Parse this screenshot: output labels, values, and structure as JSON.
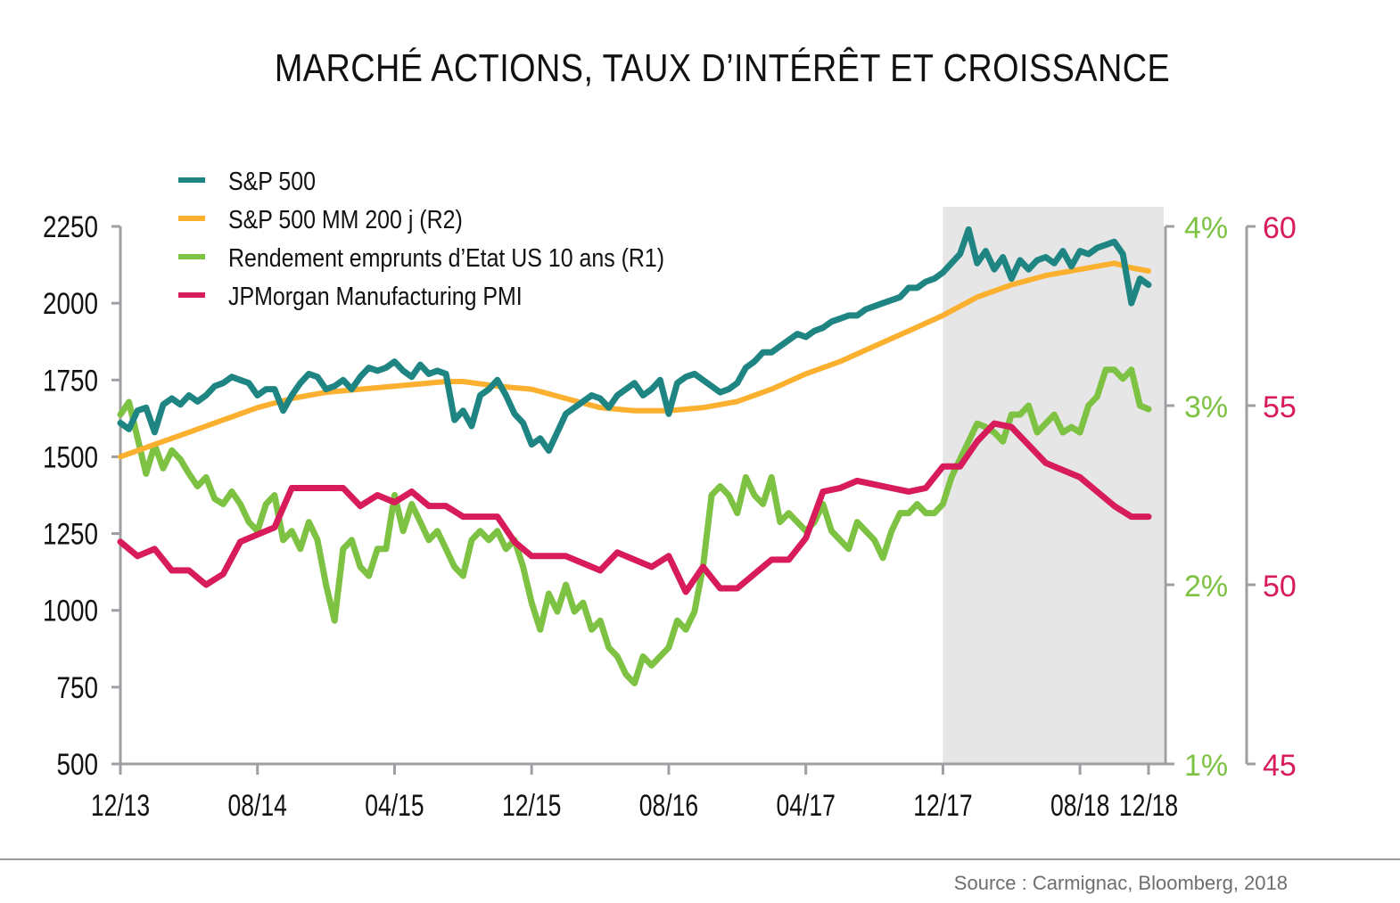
{
  "chart_data": {
    "type": "line",
    "title": "MARCHÉ ACTIONS, TAUX D’INTÉRÊT ET CROISSANCE",
    "source": "Source : Carmignac, Bloomberg, 2018",
    "x_ticks": [
      "12/13",
      "08/14",
      "04/15",
      "12/15",
      "08/16",
      "04/17",
      "12/17",
      "08/18",
      "12/18"
    ],
    "x_tick_months": [
      0,
      8,
      16,
      24,
      32,
      40,
      48,
      56,
      60
    ],
    "x_range_months": [
      0,
      61
    ],
    "shaded_region": {
      "from_month": 48,
      "to_month": 61,
      "color": "#e6e6e6"
    },
    "axes": {
      "left": {
        "ticks": [
          "2250",
          "2000",
          "1750",
          "1500",
          "1250",
          "1000",
          "750",
          "500"
        ],
        "range": [
          500,
          2250
        ],
        "color": "#111111"
      },
      "right1": {
        "ticks": [
          "4%",
          "3%",
          "2%",
          "1%"
        ],
        "range": [
          1,
          4
        ],
        "color": "#7dc242"
      },
      "right2": {
        "ticks": [
          "60",
          "55",
          "50",
          "45"
        ],
        "range": [
          45,
          60
        ],
        "color": "#d81b5a"
      }
    },
    "legend": [
      {
        "name": "S&P 500",
        "color": "#1e8583"
      },
      {
        "name": "S&P 500 MM 200 j (R2)",
        "color": "#fbb030"
      },
      {
        "name": "Rendement emprunts d’Etat US 10 ans (R1)",
        "color": "#7dc242"
      },
      {
        "name": "JPMorgan Manufacturing PMI",
        "color": "#d81b5a"
      }
    ],
    "series": [
      {
        "name": "S&P 500",
        "axis": "left",
        "color": "#1e8583",
        "x": [
          0,
          0.5,
          1,
          1.5,
          2,
          2.5,
          3,
          3.5,
          4,
          4.5,
          5,
          5.5,
          6,
          6.5,
          7,
          7.5,
          8,
          8.5,
          9,
          9.5,
          10,
          10.5,
          11,
          11.5,
          12,
          12.5,
          13,
          13.5,
          14,
          14.5,
          15,
          15.5,
          16,
          16.5,
          17,
          17.5,
          18,
          18.5,
          19,
          19.5,
          20,
          20.5,
          21,
          21.5,
          22,
          22.5,
          23,
          23.5,
          24,
          24.5,
          25,
          25.5,
          26,
          26.5,
          27,
          27.5,
          28,
          28.5,
          29,
          29.5,
          30,
          30.5,
          31,
          31.5,
          32,
          32.5,
          33,
          33.5,
          34,
          34.5,
          35,
          35.5,
          36,
          36.5,
          37,
          37.5,
          38,
          38.5,
          39,
          39.5,
          40,
          40.5,
          41,
          41.5,
          42,
          42.5,
          43,
          43.5,
          44,
          44.5,
          45,
          45.5,
          46,
          46.5,
          47,
          47.5,
          48,
          48.5,
          49,
          49.5,
          50,
          50.5,
          51,
          51.5,
          52,
          52.5,
          53,
          53.5,
          54,
          54.5,
          55,
          55.5,
          56,
          56.5,
          57,
          57.5,
          58,
          58.5,
          59,
          59.5,
          60
        ],
        "values": [
          1610,
          1590,
          1650,
          1660,
          1580,
          1670,
          1690,
          1670,
          1700,
          1680,
          1700,
          1730,
          1740,
          1760,
          1750,
          1740,
          1700,
          1720,
          1720,
          1650,
          1700,
          1740,
          1770,
          1760,
          1720,
          1730,
          1750,
          1720,
          1760,
          1790,
          1780,
          1790,
          1810,
          1780,
          1760,
          1800,
          1770,
          1780,
          1770,
          1620,
          1650,
          1600,
          1700,
          1720,
          1750,
          1700,
          1640,
          1610,
          1540,
          1560,
          1520,
          1580,
          1640,
          1660,
          1680,
          1700,
          1690,
          1660,
          1700,
          1720,
          1740,
          1700,
          1720,
          1750,
          1640,
          1740,
          1760,
          1770,
          1750,
          1730,
          1710,
          1720,
          1740,
          1790,
          1810,
          1840,
          1840,
          1860,
          1880,
          1900,
          1890,
          1910,
          1920,
          1940,
          1950,
          1960,
          1960,
          1980,
          1990,
          2000,
          2010,
          2020,
          2050,
          2050,
          2070,
          2080,
          2100,
          2130,
          2160,
          2240,
          2130,
          2170,
          2110,
          2150,
          2080,
          2140,
          2110,
          2140,
          2150,
          2130,
          2170,
          2120,
          2170,
          2160,
          2180,
          2190,
          2200,
          2160,
          2000,
          2080,
          2060
        ],
        "value_labels": []
      },
      {
        "name": "S&P 500 MM 200 j (R2)",
        "axis": "left",
        "color": "#fbb030",
        "x": [
          0,
          2,
          4,
          6,
          8,
          10,
          12,
          14,
          16,
          18,
          19,
          20,
          22,
          24,
          26,
          28,
          30,
          32,
          34,
          36,
          38,
          40,
          42,
          44,
          46,
          48,
          50,
          52,
          54,
          56,
          58,
          59,
          60
        ],
        "values": [
          1500,
          1540,
          1580,
          1620,
          1660,
          1690,
          1710,
          1720,
          1730,
          1740,
          1745,
          1745,
          1730,
          1720,
          1690,
          1660,
          1650,
          1650,
          1660,
          1680,
          1720,
          1770,
          1810,
          1860,
          1910,
          1960,
          2020,
          2060,
          2090,
          2110,
          2130,
          2115,
          2105
        ]
      },
      {
        "name": "Rendement emprunts d’Etat US 10 ans (R1)",
        "axis": "right1",
        "color": "#7dc242",
        "x": [
          0,
          0.5,
          1,
          1.5,
          2,
          2.5,
          3,
          3.5,
          4,
          4.5,
          5,
          5.5,
          6,
          6.5,
          7,
          7.5,
          8,
          8.5,
          9,
          9.5,
          10,
          10.5,
          11,
          11.5,
          12,
          12.5,
          13,
          13.5,
          14,
          14.5,
          15,
          15.5,
          16,
          16.5,
          17,
          17.5,
          18,
          18.5,
          19,
          19.5,
          20,
          20.5,
          21,
          21.5,
          22,
          22.5,
          23,
          23.5,
          24,
          24.5,
          25,
          25.5,
          26,
          26.5,
          27,
          27.5,
          28,
          28.5,
          29,
          29.5,
          30,
          30.5,
          31,
          31.5,
          32,
          32.5,
          33,
          33.5,
          34,
          34.5,
          35,
          35.5,
          36,
          36.5,
          37,
          37.5,
          38,
          38.5,
          39,
          39.5,
          40,
          40.5,
          41,
          41.5,
          42,
          42.5,
          43,
          43.5,
          44,
          44.5,
          45,
          45.5,
          46,
          46.5,
          47,
          47.5,
          48,
          48.5,
          49,
          49.5,
          50,
          50.5,
          51,
          51.5,
          52,
          52.5,
          53,
          53.5,
          54,
          54.5,
          55,
          55.5,
          56,
          56.5,
          57,
          57.5,
          58,
          58.5,
          59,
          59.5,
          60
        ],
        "values": [
          2.95,
          3.02,
          2.82,
          2.62,
          2.78,
          2.65,
          2.75,
          2.7,
          2.62,
          2.55,
          2.6,
          2.48,
          2.45,
          2.52,
          2.45,
          2.35,
          2.3,
          2.45,
          2.5,
          2.25,
          2.3,
          2.2,
          2.35,
          2.25,
          2.0,
          1.8,
          2.2,
          2.25,
          2.1,
          2.05,
          2.2,
          2.2,
          2.5,
          2.3,
          2.45,
          2.35,
          2.25,
          2.3,
          2.2,
          2.1,
          2.05,
          2.25,
          2.3,
          2.25,
          2.3,
          2.2,
          2.25,
          2.1,
          1.9,
          1.75,
          1.95,
          1.85,
          2.0,
          1.85,
          1.9,
          1.75,
          1.8,
          1.65,
          1.6,
          1.5,
          1.45,
          1.6,
          1.55,
          1.6,
          1.65,
          1.8,
          1.75,
          1.85,
          2.1,
          2.5,
          2.55,
          2.5,
          2.4,
          2.6,
          2.5,
          2.45,
          2.6,
          2.35,
          2.4,
          2.35,
          2.3,
          2.35,
          2.45,
          2.3,
          2.25,
          2.2,
          2.35,
          2.3,
          2.25,
          2.15,
          2.3,
          2.4,
          2.4,
          2.45,
          2.4,
          2.4,
          2.45,
          2.6,
          2.7,
          2.8,
          2.9,
          2.88,
          2.85,
          2.8,
          2.95,
          2.95,
          3.0,
          2.85,
          2.9,
          2.95,
          2.85,
          2.88,
          2.85,
          3.0,
          3.05,
          3.2,
          3.2,
          3.15,
          3.2,
          3.0,
          2.98
        ],
        "note": "right1 (percent)"
      },
      {
        "name": "JPMorgan Manufacturing PMI",
        "axis": "right2",
        "color": "#d81b5a",
        "x": [
          0,
          1,
          2,
          3,
          4,
          5,
          6,
          7,
          8,
          9,
          10,
          11,
          12,
          13,
          14,
          15,
          16,
          17,
          18,
          19,
          20,
          21,
          22,
          23,
          24,
          25,
          26,
          27,
          28,
          29,
          30,
          31,
          32,
          33,
          34,
          35,
          36,
          37,
          38,
          39,
          40,
          41,
          42,
          43,
          44,
          45,
          46,
          47,
          48,
          49,
          50,
          51,
          52,
          53,
          54,
          55,
          56,
          57,
          58,
          59,
          60
        ],
        "values": [
          51.2,
          50.8,
          51.0,
          50.4,
          50.4,
          50.0,
          50.3,
          51.2,
          51.4,
          51.6,
          52.7,
          52.7,
          52.7,
          52.7,
          52.2,
          52.5,
          52.3,
          52.6,
          52.2,
          52.2,
          51.9,
          51.9,
          51.9,
          51.2,
          50.8,
          50.8,
          50.8,
          50.6,
          50.4,
          50.9,
          50.7,
          50.5,
          50.8,
          49.8,
          50.5,
          49.9,
          49.9,
          50.3,
          50.7,
          50.7,
          51.3,
          52.6,
          52.7,
          52.9,
          52.8,
          52.7,
          52.6,
          52.7,
          53.3,
          53.3,
          54.0,
          54.5,
          54.4,
          53.9,
          53.4,
          53.2,
          53.0,
          52.6,
          52.2,
          51.9,
          51.9
        ]
      }
    ],
    "xlabel": "",
    "ylabel": "",
    "grid": false,
    "legend_position": "top-left"
  }
}
